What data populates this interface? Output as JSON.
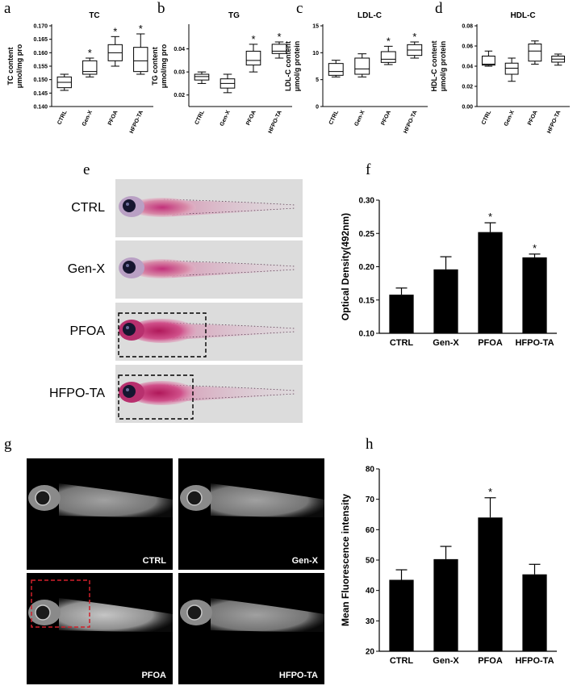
{
  "panels": {
    "a": "a",
    "b": "b",
    "c": "c",
    "d": "d",
    "e": "e",
    "f": "f",
    "g": "g",
    "h": "h"
  },
  "groups": [
    "CTRL",
    "Gen-X",
    "PFOA",
    "HFPO-TA"
  ],
  "chart_data": [
    {
      "id": "a",
      "type": "box",
      "title": "TC",
      "ylabel_lines": [
        "TC content",
        "μmol/mg pro"
      ],
      "ylim": [
        0.14,
        0.17
      ],
      "yticks": [
        "0.140",
        "0.145",
        "0.150",
        "0.155",
        "0.160",
        "0.165",
        "0.170"
      ],
      "categories": [
        "CTRL",
        "Gen-X",
        "PFOA",
        "HFPO-TA"
      ],
      "boxes": [
        {
          "min": 0.146,
          "q1": 0.147,
          "median": 0.149,
          "q3": 0.151,
          "max": 0.152
        },
        {
          "min": 0.151,
          "q1": 0.152,
          "median": 0.153,
          "q3": 0.157,
          "max": 0.158
        },
        {
          "min": 0.155,
          "q1": 0.157,
          "median": 0.16,
          "q3": 0.163,
          "max": 0.166
        },
        {
          "min": 0.152,
          "q1": 0.153,
          "median": 0.157,
          "q3": 0.162,
          "max": 0.167
        }
      ],
      "significant": [
        "",
        "*",
        "*",
        "*"
      ]
    },
    {
      "id": "b",
      "type": "box",
      "title": "TG",
      "ylabel_lines": [
        "TG content",
        "μmol/mg pro"
      ],
      "ylim": [
        0.015,
        0.05
      ],
      "yticks": [
        "0.02",
        "0.03",
        "0.04"
      ],
      "ytick_values": [
        0.02,
        0.03,
        0.04
      ],
      "categories": [
        "CTRL",
        "Gen-X",
        "PFOA",
        "HFPO-TA"
      ],
      "boxes": [
        {
          "min": 0.025,
          "q1": 0.0265,
          "median": 0.028,
          "q3": 0.029,
          "max": 0.03
        },
        {
          "min": 0.021,
          "q1": 0.023,
          "median": 0.025,
          "q3": 0.027,
          "max": 0.029
        },
        {
          "min": 0.03,
          "q1": 0.033,
          "median": 0.035,
          "q3": 0.039,
          "max": 0.042
        },
        {
          "min": 0.036,
          "q1": 0.038,
          "median": 0.039,
          "q3": 0.042,
          "max": 0.043
        }
      ],
      "significant": [
        "",
        "",
        "*",
        "*"
      ]
    },
    {
      "id": "c",
      "type": "box",
      "title": "LDL-C",
      "ylabel_lines": [
        "LDL-C content",
        "μmol/g protein"
      ],
      "ylim": [
        0,
        15
      ],
      "yticks": [
        "0",
        "5",
        "10",
        "15"
      ],
      "ytick_values": [
        0,
        5,
        10,
        15
      ],
      "categories": [
        "CTRL",
        "Gen-X",
        "PFOA",
        "HFPO-TA"
      ],
      "boxes": [
        {
          "min": 5.5,
          "q1": 5.8,
          "median": 6.5,
          "q3": 8.0,
          "max": 8.6
        },
        {
          "min": 5.5,
          "q1": 6.0,
          "median": 7.0,
          "q3": 9.0,
          "max": 9.8
        },
        {
          "min": 7.8,
          "q1": 8.2,
          "median": 8.8,
          "q3": 10.2,
          "max": 11.2
        },
        {
          "min": 9.0,
          "q1": 9.5,
          "median": 10.5,
          "q3": 11.5,
          "max": 12.0
        }
      ],
      "significant": [
        "",
        "",
        "*",
        "*"
      ]
    },
    {
      "id": "d",
      "type": "box",
      "title": "HDL-C",
      "ylabel_lines": [
        "HDL-C content",
        "μmol/g protein"
      ],
      "ylim": [
        0,
        0.08
      ],
      "yticks": [
        "0.00",
        "0.02",
        "0.04",
        "0.06",
        "0.08"
      ],
      "ytick_values": [
        0,
        0.02,
        0.04,
        0.06,
        0.08
      ],
      "categories": [
        "CTRL",
        "Gen-X",
        "PFOA",
        "HFPO-TA"
      ],
      "boxes": [
        {
          "min": 0.04,
          "q1": 0.041,
          "median": 0.042,
          "q3": 0.05,
          "max": 0.055
        },
        {
          "min": 0.025,
          "q1": 0.032,
          "median": 0.038,
          "q3": 0.043,
          "max": 0.048
        },
        {
          "min": 0.042,
          "q1": 0.045,
          "median": 0.055,
          "q3": 0.062,
          "max": 0.065
        },
        {
          "min": 0.041,
          "q1": 0.044,
          "median": 0.047,
          "q3": 0.05,
          "max": 0.052
        }
      ],
      "significant": [
        "",
        "",
        "",
        ""
      ]
    },
    {
      "id": "f",
      "type": "bar",
      "ylabel": "Optical Density(492nm)",
      "ylim": [
        0.1,
        0.3
      ],
      "yticks": [
        "0.10",
        "0.15",
        "0.20",
        "0.25",
        "0.30"
      ],
      "ytick_values": [
        0.1,
        0.15,
        0.2,
        0.25,
        0.3
      ],
      "categories": [
        "CTRL",
        "Gen-X",
        "PFOA",
        "HFPO-TA"
      ],
      "values": [
        0.158,
        0.196,
        0.252,
        0.214
      ],
      "errors": [
        0.01,
        0.019,
        0.014,
        0.005
      ],
      "significant": [
        "",
        "",
        "*",
        "*"
      ]
    },
    {
      "id": "h",
      "type": "bar",
      "ylabel": "Mean Fluorescence intensity",
      "ylim": [
        20,
        80
      ],
      "yticks": [
        "20",
        "30",
        "40",
        "50",
        "60",
        "70",
        "80"
      ],
      "ytick_values": [
        20,
        30,
        40,
        50,
        60,
        70,
        80
      ],
      "categories": [
        "CTRL",
        "Gen-X",
        "PFOA",
        "HFPO-TA"
      ],
      "values": [
        43.5,
        50.3,
        64.0,
        45.3
      ],
      "errors": [
        3.3,
        4.2,
        6.5,
        3.3
      ],
      "significant": [
        "",
        "",
        "*",
        ""
      ]
    }
  ],
  "fish_e": {
    "labels": [
      "CTRL",
      "Gen-X",
      "PFOA",
      "HFPO-TA"
    ],
    "highlighted": [
      false,
      false,
      true,
      true
    ]
  },
  "fish_g": {
    "labels": [
      "CTRL",
      "Gen-X",
      "PFOA",
      "HFPO-TA"
    ],
    "highlighted": [
      false,
      false,
      true,
      false
    ],
    "highlight_color": "#d0202a"
  }
}
